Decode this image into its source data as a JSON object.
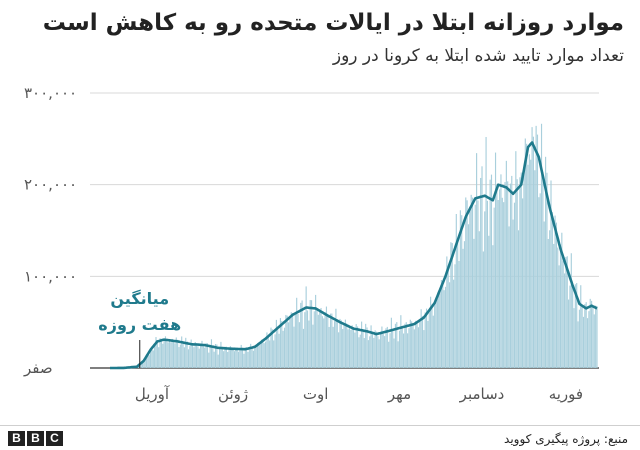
{
  "header": {
    "title": "موارد روزانه ابتلا در ایالات متحده رو به کاهش است",
    "subtitle": "تعداد موارد تایید شده ابتلا به کرونا در روز"
  },
  "footer": {
    "brand": [
      "B",
      "B",
      "C"
    ],
    "source": "منبع: پروژه پیگیری کووید"
  },
  "chart_data": {
    "type": "bar",
    "x_unit": "day index since first plotted day",
    "y_ticks": [
      {
        "value": 0,
        "label": "صفر"
      },
      {
        "value": 100000,
        "label": "۱۰۰,۰۰۰"
      },
      {
        "value": 200000,
        "label": "۲۰۰,۰۰۰"
      },
      {
        "value": 300000,
        "label": "۳۰۰,۰۰۰"
      }
    ],
    "ylim": [
      0,
      300000
    ],
    "xlim": [
      0,
      360
    ],
    "x_ticks": [
      {
        "day": 31,
        "label": "آوریل"
      },
      {
        "day": 91,
        "label": "ژوئن"
      },
      {
        "day": 152,
        "label": "اوت"
      },
      {
        "day": 214,
        "label": "مهر"
      },
      {
        "day": 275,
        "label": "دسامبر"
      },
      {
        "day": 337,
        "label": "فوریه"
      }
    ],
    "series": [
      {
        "name": "میانگین هفت روزه",
        "color": "#1f7a8c",
        "points": [
          [
            0,
            0
          ],
          [
            10,
            100
          ],
          [
            20,
            1500
          ],
          [
            25,
            8000
          ],
          [
            30,
            20000
          ],
          [
            35,
            29000
          ],
          [
            40,
            31000
          ],
          [
            45,
            30000
          ],
          [
            50,
            29000
          ],
          [
            60,
            26000
          ],
          [
            70,
            25000
          ],
          [
            80,
            22000
          ],
          [
            90,
            21000
          ],
          [
            100,
            20500
          ],
          [
            107,
            23000
          ],
          [
            115,
            32000
          ],
          [
            125,
            45000
          ],
          [
            135,
            58000
          ],
          [
            145,
            66000
          ],
          [
            152,
            65000
          ],
          [
            160,
            58000
          ],
          [
            170,
            50000
          ],
          [
            180,
            43000
          ],
          [
            190,
            40000
          ],
          [
            197,
            37000
          ],
          [
            205,
            40000
          ],
          [
            215,
            44000
          ],
          [
            225,
            48000
          ],
          [
            232,
            55000
          ],
          [
            240,
            71000
          ],
          [
            248,
            100000
          ],
          [
            256,
            135000
          ],
          [
            263,
            165000
          ],
          [
            270,
            185000
          ],
          [
            277,
            188000
          ],
          [
            283,
            183000
          ],
          [
            287,
            200000
          ],
          [
            293,
            197000
          ],
          [
            298,
            190000
          ],
          [
            304,
            200000
          ],
          [
            309,
            241000
          ],
          [
            312,
            246000
          ],
          [
            317,
            230000
          ],
          [
            325,
            175000
          ],
          [
            333,
            130000
          ],
          [
            342,
            90000
          ],
          [
            347,
            70000
          ],
          [
            352,
            65000
          ],
          [
            356,
            68000
          ],
          [
            360,
            65000
          ]
        ]
      }
    ],
    "bars_color": "#a9cfdc",
    "annotation": {
      "lines": [
        "میانگین",
        "هفت روزه"
      ],
      "color": "#1f7a8c",
      "at_day": 22
    }
  }
}
